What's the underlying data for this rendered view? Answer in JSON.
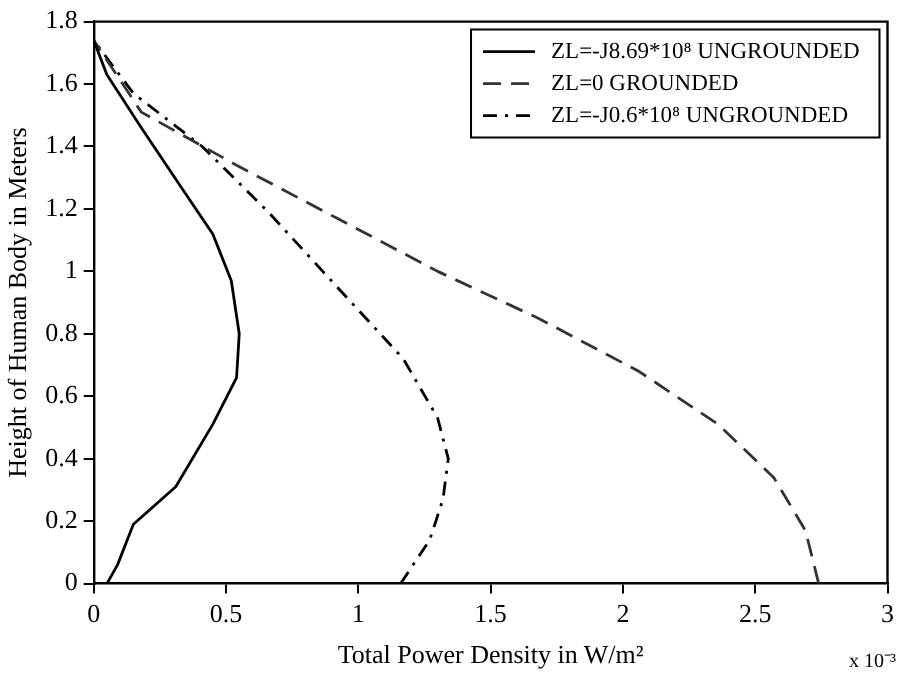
{
  "chart_data": {
    "type": "line",
    "xlabel": "Total Power Density in W/m²",
    "ylabel": "Height of Human Body in Meters",
    "xlim": [
      0,
      3
    ],
    "xticks": [
      0,
      0.5,
      1,
      1.5,
      2,
      2.5,
      3
    ],
    "ylim": [
      0,
      1.8
    ],
    "yticks": [
      0,
      0.2,
      0.4,
      0.6,
      0.8,
      1,
      1.2,
      1.4,
      1.6,
      1.8
    ],
    "grid": false,
    "legend": "top right",
    "marker": "none",
    "annotations": [
      "x 10⁻³"
    ],
    "series": [
      {
        "name": "ZL=-J8.69*10⁸ UNGROUNDED",
        "color": "#000000",
        "line_style": "solid",
        "x": [
          0.05,
          0.09,
          0.15,
          0.31,
          0.45,
          0.54,
          0.55,
          0.52,
          0.45,
          0.33,
          0.18,
          0.05,
          0
        ],
        "values": [
          0,
          0.06,
          0.19,
          0.31,
          0.51,
          0.66,
          0.8,
          0.97,
          1.12,
          1.27,
          1.46,
          1.63,
          1.74
        ]
      },
      {
        "name": "ZL=0 GROUNDED",
        "color": "#333333",
        "line_style": "dashed",
        "x": [
          2.74,
          2.69,
          2.57,
          2.36,
          2.06,
          1.68,
          1.3,
          0.92,
          0.54,
          0.18,
          0
        ],
        "values": [
          0,
          0.17,
          0.34,
          0.51,
          0.68,
          0.85,
          1.0,
          1.17,
          1.34,
          1.51,
          1.74
        ]
      },
      {
        "name": "ZL=-J0.6*10⁸ UNGROUNDED",
        "color": "#000000",
        "line_style": "dotted",
        "x": [
          1.16,
          1.27,
          1.32,
          1.34,
          1.3,
          1.17,
          0.92,
          0.66,
          0.41,
          0.15,
          0
        ],
        "values": [
          0,
          0.14,
          0.27,
          0.4,
          0.53,
          0.72,
          0.95,
          1.19,
          1.4,
          1.57,
          1.74
        ]
      }
    ]
  }
}
